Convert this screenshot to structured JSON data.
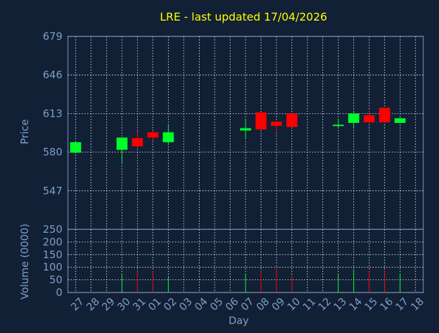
{
  "colors": {
    "background": "#112035",
    "text": "#7f9ec8",
    "title": "#ffff00",
    "grid": "#c8d2dc",
    "up": "#00ff2a",
    "down": "#ff0000"
  },
  "chart_data": [
    {
      "type": "candlestick",
      "title": "LRE - last updated 17/04/2026",
      "ylabel": "Price",
      "ylim": [
        514,
        679
      ],
      "ytick_values": [
        580,
        613,
        646,
        679,
        547
      ],
      "ytick_labels": [
        "580",
        "613",
        "646",
        "679",
        "547"
      ],
      "grid": true,
      "candles": [
        {
          "day": "27",
          "open": 579.5,
          "high": 589.5,
          "low": 579.5,
          "close": 588.5
        },
        {
          "day": "30",
          "open": 582.0,
          "high": 592.5,
          "low": 571.0,
          "close": 592.5
        },
        {
          "day": "31",
          "open": 592.0,
          "high": 598.0,
          "low": 584.5,
          "close": 585.0
        },
        {
          "day": "01",
          "open": 597.0,
          "high": 597.5,
          "low": 590.0,
          "close": 592.5
        },
        {
          "day": "02",
          "open": 588.5,
          "high": 603.0,
          "low": 586.0,
          "close": 597.0
        },
        {
          "day": "07",
          "open": 598.5,
          "high": 607.5,
          "low": 591.0,
          "close": 600.5
        },
        {
          "day": "08",
          "open": 614.0,
          "high": 614.5,
          "low": 599.0,
          "close": 599.5
        },
        {
          "day": "09",
          "open": 606.0,
          "high": 606.5,
          "low": 596.5,
          "close": 602.5
        },
        {
          "day": "10",
          "open": 613.0,
          "high": 613.5,
          "low": 601.0,
          "close": 601.5
        },
        {
          "day": "13",
          "open": 603.0,
          "high": 608.5,
          "low": 601.5,
          "close": 603.5
        },
        {
          "day": "14",
          "open": 605.0,
          "high": 615.5,
          "low": 601.5,
          "close": 613.0
        },
        {
          "day": "15",
          "open": 611.5,
          "high": 616.0,
          "low": 604.5,
          "close": 605.5
        },
        {
          "day": "16",
          "open": 618.0,
          "high": 618.0,
          "low": 605.0,
          "close": 605.5
        },
        {
          "day": "17",
          "open": 605.0,
          "high": 609.5,
          "low": 605.0,
          "close": 609.0
        }
      ]
    },
    {
      "type": "bar",
      "ylabel": "Volume (0000)",
      "xlabel": "Day",
      "ylim": [
        0,
        250
      ],
      "ytick_values": [
        0,
        50,
        100,
        150,
        200,
        250
      ],
      "ytick_labels": [
        "0",
        "50",
        "100",
        "150",
        "200",
        "250"
      ],
      "categories": [
        "27",
        "28",
        "29",
        "30",
        "31",
        "01",
        "02",
        "03",
        "04",
        "05",
        "06",
        "07",
        "08",
        "09",
        "10",
        "11",
        "12",
        "13",
        "14",
        "15",
        "16",
        "17",
        "18"
      ],
      "values": [
        0,
        0,
        0,
        70,
        85,
        88,
        60,
        0,
        0,
        0,
        0,
        75,
        85,
        100,
        68,
        0,
        0,
        70,
        90,
        88,
        90,
        70,
        0
      ],
      "direction": [
        "",
        "",
        "",
        "up",
        "down",
        "down",
        "up",
        "",
        "",
        "",
        "",
        "up",
        "down",
        "down",
        "down",
        "",
        "",
        "up",
        "up",
        "down",
        "down",
        "up",
        ""
      ]
    }
  ]
}
